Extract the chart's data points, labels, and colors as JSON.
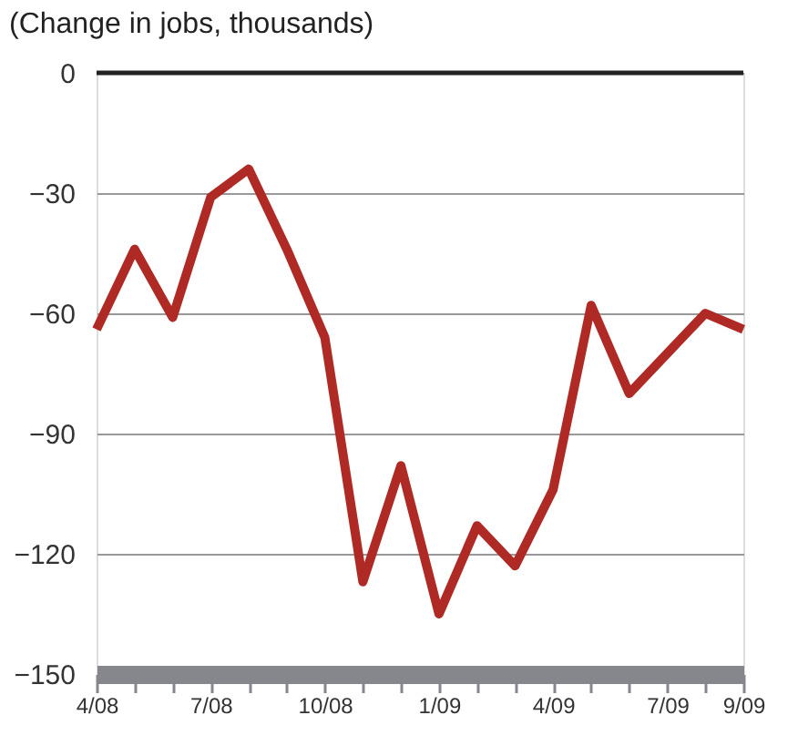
{
  "chart_data": {
    "type": "line",
    "title": "(Change in jobs, thousands)",
    "categories": [
      "4/08",
      null,
      null,
      "7/08",
      null,
      null,
      "10/08",
      null,
      null,
      "1/09",
      null,
      null,
      "4/09",
      null,
      null,
      "7/09",
      null,
      "9/09"
    ],
    "series": [
      {
        "color": "#b02a25",
        "values": [
          -64,
          -44,
          -61,
          -31,
          -24,
          -44,
          -66,
          -127,
          -98,
          -135,
          -113,
          -123,
          -104,
          -58,
          -80,
          -70,
          -60,
          -64
        ]
      }
    ],
    "ylim": [
      -150,
      0
    ],
    "yticks": [
      -150,
      -120,
      -90,
      -60,
      -30,
      0
    ],
    "grid": "y",
    "ref_lines": [
      {
        "axis": "y",
        "value": 0,
        "color": "#222222"
      }
    ],
    "marker": "none",
    "line_style": "solid",
    "legend": false
  }
}
